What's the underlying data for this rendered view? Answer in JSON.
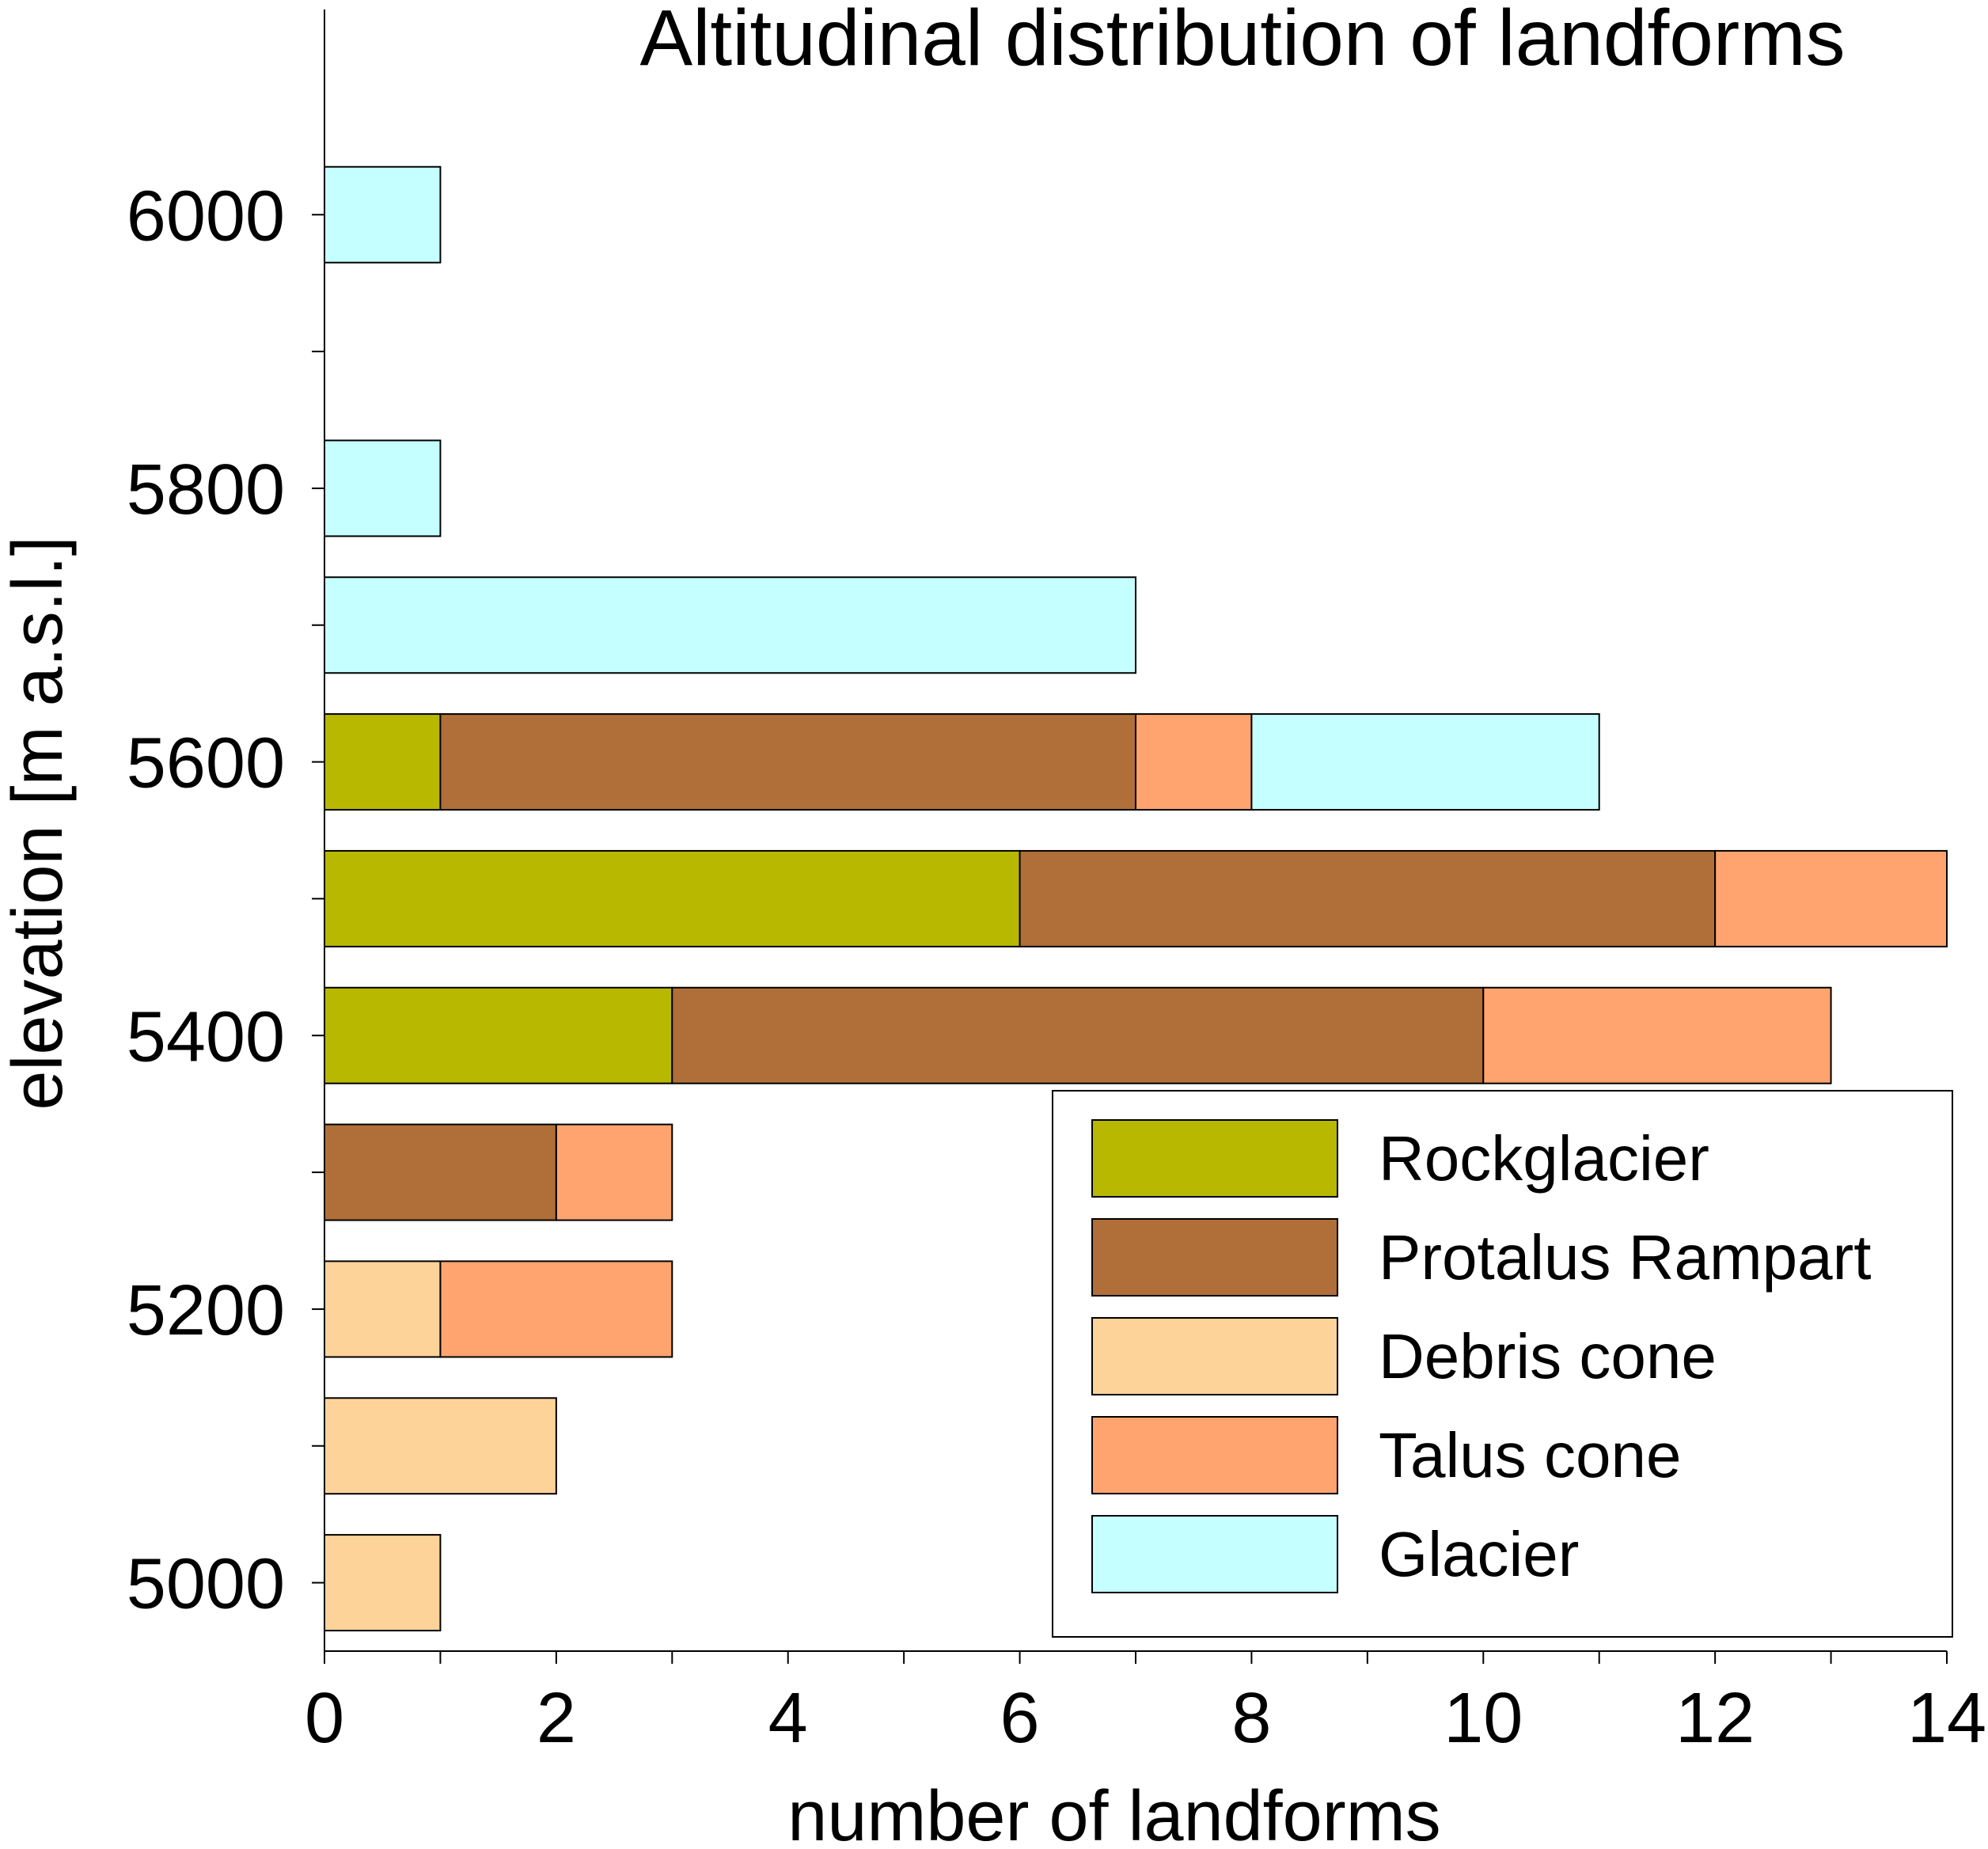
{
  "chart_data": {
    "type": "bar",
    "orientation": "horizontal",
    "stacked": true,
    "title": "Altitudinal distribution of landforms",
    "xlabel": "number of landforms",
    "ylabel": "elevation [m a.s.l.]",
    "xlim": [
      0,
      14
    ],
    "ylim": [
      4950,
      6150
    ],
    "xticks": [
      0,
      2,
      4,
      6,
      8,
      10,
      12,
      14
    ],
    "yticks": [
      5000,
      5200,
      5400,
      5600,
      5800,
      6000
    ],
    "grid": false,
    "legend_position": "bottom-right",
    "elevations": [
      5000,
      5100,
      5200,
      5300,
      5400,
      5500,
      5600,
      5700,
      5800,
      5900,
      6000
    ],
    "series": [
      {
        "name": "Rockglacier",
        "color": "#b8b800",
        "values": [
          0,
          0,
          0,
          0,
          3,
          6,
          1,
          0,
          0,
          0,
          0
        ]
      },
      {
        "name": "Protalus Rampart",
        "color": "#b06f38",
        "values": [
          0,
          0,
          0,
          2,
          7,
          6,
          6,
          0,
          0,
          0,
          0
        ]
      },
      {
        "name": "Debris cone",
        "color": "#fdd39a",
        "values": [
          1,
          2,
          1,
          0,
          0,
          0,
          0,
          0,
          0,
          0,
          0
        ]
      },
      {
        "name": "Talus cone",
        "color": "#ffa46f",
        "values": [
          0,
          0,
          2,
          1,
          3,
          2,
          1,
          0,
          0,
          0,
          0
        ]
      },
      {
        "name": "Glacier",
        "color": "#c6ffff",
        "values": [
          0,
          0,
          0,
          0,
          0,
          0,
          3,
          7,
          1,
          0,
          1
        ]
      }
    ]
  }
}
